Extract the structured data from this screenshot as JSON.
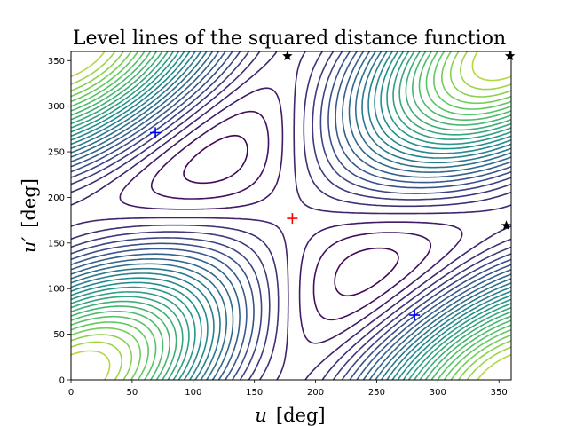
{
  "chart_data": {
    "type": "contour",
    "title": "Level lines of the squared distance function",
    "xlabel": {
      "var": "u",
      "unit": "[deg]"
    },
    "ylabel": {
      "var": "u′",
      "unit": "[deg]"
    },
    "xlim": [
      0,
      360
    ],
    "ylim": [
      0,
      360
    ],
    "xticks": [
      0,
      50,
      100,
      150,
      200,
      250,
      300,
      350
    ],
    "yticks": [
      0,
      50,
      100,
      150,
      200,
      250,
      300,
      350
    ],
    "colormap": [
      "#440154",
      "#3b528b",
      "#21918c",
      "#5ec962",
      "#fde725"
    ],
    "markers": [
      {
        "type": "plus",
        "color": "#ff0000",
        "x": 181,
        "y": 177
      },
      {
        "type": "plus",
        "color": "#0000ff",
        "x": 69,
        "y": 271
      },
      {
        "type": "plus",
        "color": "#0000ff",
        "x": 281,
        "y": 71
      },
      {
        "type": "star",
        "color": "#000000",
        "x": 177,
        "y": 355
      },
      {
        "type": "star",
        "color": "#000000",
        "x": 359,
        "y": 355
      },
      {
        "type": "star",
        "color": "#000000",
        "x": 356,
        "y": 169
      }
    ]
  }
}
